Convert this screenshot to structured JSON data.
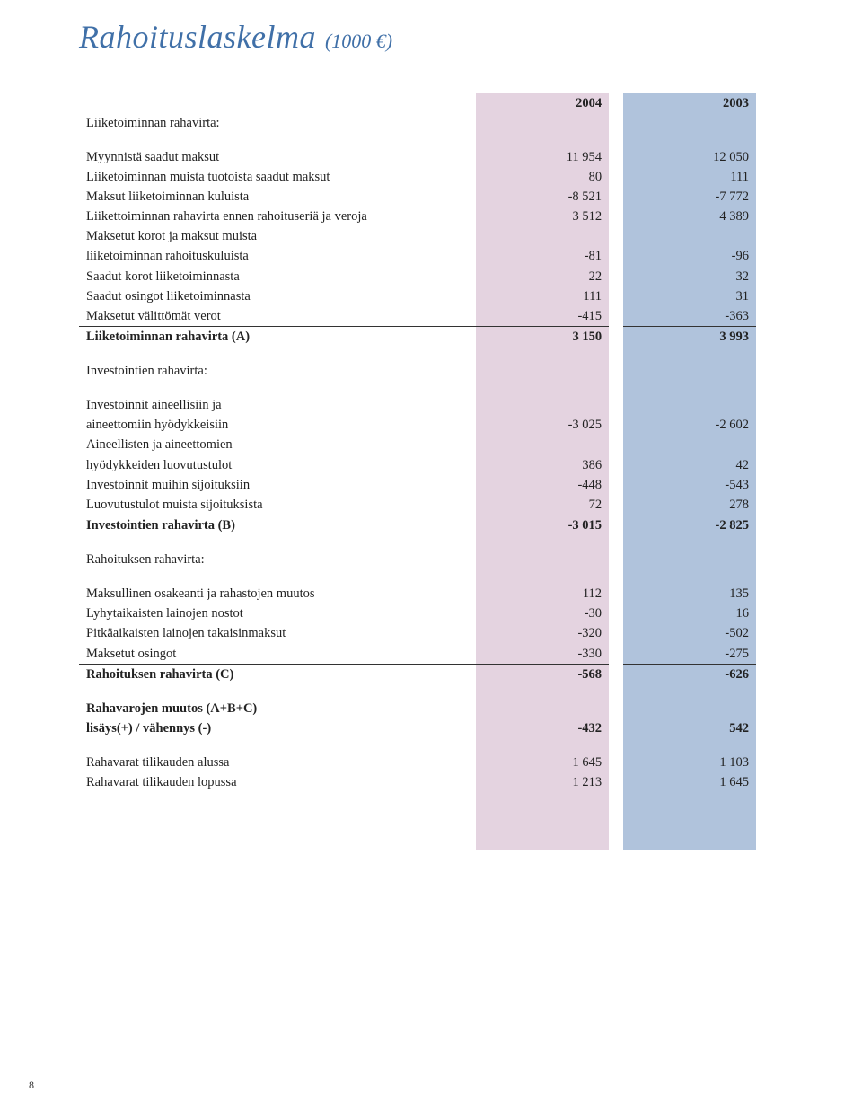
{
  "title": {
    "main": "Rahoituslaskelma",
    "sub": "(1000 €)"
  },
  "colors": {
    "title": "#4070a8",
    "col2004_bg": "#e4d3e0",
    "col2003_bg": "#b0c3dc",
    "text": "#222222"
  },
  "headers": {
    "label": "",
    "y2004": "2004",
    "y2003": "2003"
  },
  "rows": [
    {
      "kind": "section",
      "label": "Liiketoiminnan rahavirta:"
    },
    {
      "kind": "spacer"
    },
    {
      "kind": "data",
      "label": "Myynnistä saadut maksut",
      "y2004": "11 954",
      "y2003": "12 050"
    },
    {
      "kind": "data",
      "label": "Liiketoiminnan muista tuotoista saadut maksut",
      "y2004": "80",
      "y2003": "111"
    },
    {
      "kind": "data",
      "label": "Maksut liiketoiminnan kuluista",
      "y2004": "-8 521",
      "y2003": "-7 772"
    },
    {
      "kind": "data",
      "label": "Liikettoiminnan rahavirta ennen rahoituseriä ja veroja",
      "y2004": "3 512",
      "y2003": "4 389"
    },
    {
      "kind": "data",
      "label": "Maksetut korot ja maksut muista",
      "y2004": "",
      "y2003": ""
    },
    {
      "kind": "data",
      "label": "liiketoiminnan rahoituskuluista",
      "y2004": "-81",
      "y2003": "-96"
    },
    {
      "kind": "data",
      "label": "Saadut korot liiketoiminnasta",
      "y2004": "22",
      "y2003": "32"
    },
    {
      "kind": "data",
      "label": "Saadut osingot liiketoiminnasta",
      "y2004": "111",
      "y2003": "31"
    },
    {
      "kind": "data",
      "label": "Maksetut välittömät verot",
      "y2004": "-415",
      "y2003": "-363",
      "underline": true
    },
    {
      "kind": "data",
      "label": "Liiketoiminnan rahavirta (A)",
      "y2004": "3 150",
      "y2003": "3 993",
      "bold": true
    },
    {
      "kind": "spacer"
    },
    {
      "kind": "section",
      "label": "Investointien rahavirta:"
    },
    {
      "kind": "spacer"
    },
    {
      "kind": "data",
      "label": "Investoinnit aineellisiin ja",
      "y2004": "",
      "y2003": ""
    },
    {
      "kind": "data",
      "label": "aineettomiin hyödykkeisiin",
      "y2004": "-3 025",
      "y2003": "-2 602"
    },
    {
      "kind": "data",
      "label": "Aineellisten ja aineettomien",
      "y2004": "",
      "y2003": ""
    },
    {
      "kind": "data",
      "label": "hyödykkeiden luovutustulot",
      "y2004": "386",
      "y2003": "42"
    },
    {
      "kind": "data",
      "label": "Investoinnit muihin sijoituksiin",
      "y2004": "-448",
      "y2003": "-543"
    },
    {
      "kind": "data",
      "label": "Luovutustulot muista sijoituksista",
      "y2004": "72",
      "y2003": "278",
      "underline": true
    },
    {
      "kind": "data",
      "label": "Investointien rahavirta (B)",
      "y2004": "-3 015",
      "y2003": "-2 825",
      "bold": true
    },
    {
      "kind": "spacer"
    },
    {
      "kind": "section",
      "label": "Rahoituksen rahavirta:"
    },
    {
      "kind": "spacer"
    },
    {
      "kind": "data",
      "label": "Maksullinen osakeanti ja rahastojen muutos",
      "y2004": "112",
      "y2003": "135"
    },
    {
      "kind": "data",
      "label": "Lyhytaikaisten lainojen nostot",
      "y2004": "-30",
      "y2003": "16"
    },
    {
      "kind": "data",
      "label": "Pitkäaikaisten lainojen takaisinmaksut",
      "y2004": "-320",
      "y2003": "-502"
    },
    {
      "kind": "data",
      "label": "Maksetut osingot",
      "y2004": "-330",
      "y2003": "-275",
      "underline": true
    },
    {
      "kind": "data",
      "label": "Rahoituksen rahavirta (C)",
      "y2004": "-568",
      "y2003": "-626",
      "bold": true
    },
    {
      "kind": "spacer"
    },
    {
      "kind": "data",
      "label": "Rahavarojen muutos (A+B+C)",
      "y2004": "",
      "y2003": "",
      "bold": true
    },
    {
      "kind": "data",
      "label": "lisäys(+) / vähennys (-)",
      "y2004": "-432",
      "y2003": "542",
      "bold": true
    },
    {
      "kind": "spacer"
    },
    {
      "kind": "data",
      "label": "Rahavarat tilikauden alussa",
      "y2004": "1 645",
      "y2003": "1 103"
    },
    {
      "kind": "data",
      "label": "Rahavarat tilikauden lopussa",
      "y2004": "1 213",
      "y2003": "1 645"
    },
    {
      "kind": "spacer"
    },
    {
      "kind": "spacer"
    },
    {
      "kind": "spacer"
    },
    {
      "kind": "spacer"
    }
  ],
  "pageNumber": "8"
}
